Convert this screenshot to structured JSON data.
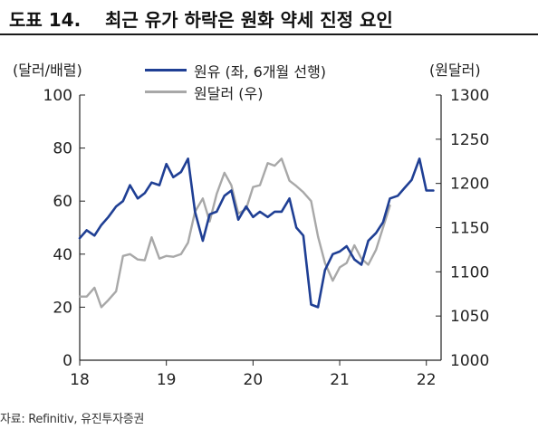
{
  "figure": {
    "label": "도표 14.",
    "title": "최근 유가 하락은 원화 약세 진정 요인"
  },
  "source": "자료: Refinitiv, 유진투자증권",
  "colors": {
    "oil": "#1f3f94",
    "fx": "#a8a8a8",
    "axis": "#222222"
  },
  "chart_data": {
    "type": "line",
    "title": "최근 유가 하락은 원화 약세 진정 요인",
    "left_unit": "(달러/배럴)",
    "right_unit": "(원달러)",
    "legend_position": "top-center",
    "grid": false,
    "x_ticks": [
      "18",
      "19",
      "20",
      "21",
      "22"
    ],
    "xlim": [
      2018.0,
      2022.17
    ],
    "y_left": {
      "range": [
        0,
        100
      ],
      "ticks": [
        "0",
        "20",
        "40",
        "60",
        "80",
        "100"
      ]
    },
    "y_right": {
      "range": [
        1000,
        1300
      ],
      "ticks": [
        "1000",
        "1050",
        "1100",
        "1150",
        "1200",
        "1250",
        "1300"
      ]
    },
    "series": [
      {
        "name": "원유 (좌, 6개월 선행)",
        "axis": "left",
        "color": "#1f3f94",
        "x": [
          2018.0,
          2018.08,
          2018.17,
          2018.25,
          2018.33,
          2018.42,
          2018.5,
          2018.58,
          2018.67,
          2018.75,
          2018.83,
          2018.92,
          2019.0,
          2019.08,
          2019.17,
          2019.25,
          2019.33,
          2019.42,
          2019.5,
          2019.58,
          2019.67,
          2019.75,
          2019.83,
          2019.92,
          2020.0,
          2020.08,
          2020.17,
          2020.25,
          2020.33,
          2020.42,
          2020.5,
          2020.58,
          2020.67,
          2020.75,
          2020.83,
          2020.92,
          2021.0,
          2021.08,
          2021.17,
          2021.25,
          2021.33,
          2021.42,
          2021.5,
          2021.58,
          2021.67,
          2021.75,
          2021.83,
          2021.92,
          2022.0,
          2022.08
        ],
        "values": [
          46,
          49,
          47,
          51,
          54,
          58,
          60,
          66,
          61,
          63,
          67,
          66,
          74,
          69,
          71,
          76,
          56,
          45,
          55,
          56,
          62,
          64,
          53,
          58,
          54,
          56,
          54,
          56,
          56,
          61,
          50,
          47,
          21,
          20,
          34,
          40,
          41,
          43,
          38,
          36,
          45,
          48,
          52,
          61,
          62,
          65,
          68,
          76,
          64,
          64
        ]
      },
      {
        "name": "원달러 (우)",
        "axis": "right",
        "color": "#a8a8a8",
        "x": [
          2018.0,
          2018.08,
          2018.17,
          2018.25,
          2018.33,
          2018.42,
          2018.5,
          2018.58,
          2018.67,
          2018.75,
          2018.83,
          2018.92,
          2019.0,
          2019.08,
          2019.17,
          2019.25,
          2019.33,
          2019.42,
          2019.5,
          2019.58,
          2019.67,
          2019.75,
          2019.83,
          2019.92,
          2020.0,
          2020.08,
          2020.17,
          2020.25,
          2020.33,
          2020.42,
          2020.5,
          2020.58,
          2020.67,
          2020.75,
          2020.83,
          2020.92,
          2021.0,
          2021.08,
          2021.17,
          2021.25,
          2021.33,
          2021.42,
          2021.5,
          2021.58
        ],
        "values": [
          1072,
          1072,
          1082,
          1060,
          1068,
          1078,
          1118,
          1120,
          1114,
          1113,
          1139,
          1115,
          1118,
          1117,
          1120,
          1133,
          1168,
          1183,
          1157,
          1188,
          1212,
          1198,
          1166,
          1171,
          1196,
          1198,
          1223,
          1220,
          1228,
          1203,
          1197,
          1190,
          1180,
          1140,
          1110,
          1090,
          1105,
          1110,
          1130,
          1115,
          1108,
          1125,
          1150,
          1175
        ]
      }
    ]
  }
}
